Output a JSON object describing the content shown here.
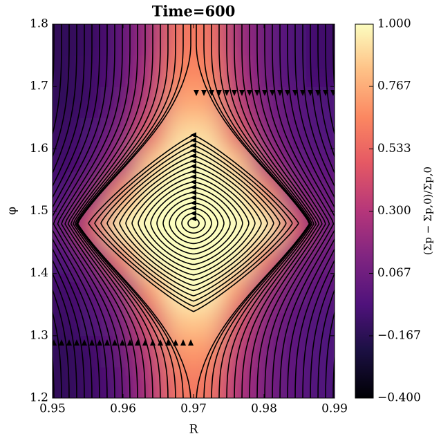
{
  "chart_data": {
    "type": "heatmap",
    "title": "Time=600",
    "x_label": "R",
    "y_label": "φ",
    "colorbar_label": "(Σp − Σp,0)/Σp,0",
    "colormap": "magma",
    "x": [
      0.952,
      0.956,
      0.96,
      0.964,
      0.968,
      0.972,
      0.976,
      0.98,
      0.984,
      0.988
    ],
    "y": [
      1.225,
      1.275,
      1.325,
      1.375,
      1.425,
      1.475,
      1.525,
      1.575,
      1.625,
      1.675,
      1.725,
      1.775
    ],
    "z": [
      [
        -0.15,
        -0.1,
        0.0,
        0.3,
        0.6,
        0.6,
        0.3,
        0.1,
        0.0,
        -0.05
      ],
      [
        -0.15,
        -0.1,
        0.05,
        0.35,
        0.7,
        0.7,
        0.35,
        0.1,
        0.0,
        -0.05
      ],
      [
        -0.12,
        -0.05,
        0.1,
        0.45,
        0.85,
        0.85,
        0.45,
        0.15,
        0.0,
        -0.05
      ],
      [
        -0.1,
        0.0,
        0.2,
        0.7,
        1.0,
        1.0,
        0.7,
        0.25,
        0.05,
        0.0
      ],
      [
        -0.05,
        0.15,
        0.6,
        1.0,
        1.0,
        1.0,
        1.0,
        0.6,
        0.15,
        0.05
      ],
      [
        0.05,
        0.5,
        1.0,
        1.0,
        1.0,
        1.0,
        1.0,
        1.0,
        0.5,
        0.1
      ],
      [
        -0.05,
        0.2,
        0.7,
        1.0,
        1.0,
        1.0,
        1.0,
        0.7,
        0.2,
        0.05
      ],
      [
        -0.1,
        0.0,
        0.3,
        0.85,
        1.0,
        1.0,
        0.85,
        0.3,
        0.05,
        0.0
      ],
      [
        -0.12,
        -0.05,
        0.15,
        0.5,
        0.9,
        0.9,
        0.5,
        0.15,
        0.0,
        -0.05
      ],
      [
        -0.15,
        -0.1,
        0.05,
        0.35,
        0.75,
        0.75,
        0.35,
        0.1,
        0.0,
        -0.05
      ],
      [
        -0.15,
        -0.1,
        0.0,
        0.3,
        0.65,
        0.65,
        0.3,
        0.05,
        -0.05,
        -0.1
      ],
      [
        -0.15,
        -0.12,
        0.0,
        0.25,
        0.6,
        0.6,
        0.25,
        0.05,
        -0.05,
        -0.1
      ]
    ],
    "xlim": [
      0.95,
      0.99
    ],
    "xticks": [
      0.95,
      0.96,
      0.97,
      0.98,
      0.99
    ],
    "ylim": [
      1.2,
      1.8
    ],
    "yticks": [
      1.2,
      1.3,
      1.4,
      1.5,
      1.6,
      1.7,
      1.8
    ],
    "clim": [
      -0.4,
      1.0
    ],
    "cticks": [
      {
        "value": -0.4,
        "label": "−0.400"
      },
      {
        "value": -0.167,
        "label": "−0.167"
      },
      {
        "value": 0.067,
        "label": "0.067"
      },
      {
        "value": 0.3,
        "label": "0.300"
      },
      {
        "value": 0.533,
        "label": "0.533"
      },
      {
        "value": 0.767,
        "label": "0.767"
      },
      {
        "value": 1.0,
        "label": "1.000"
      }
    ]
  }
}
